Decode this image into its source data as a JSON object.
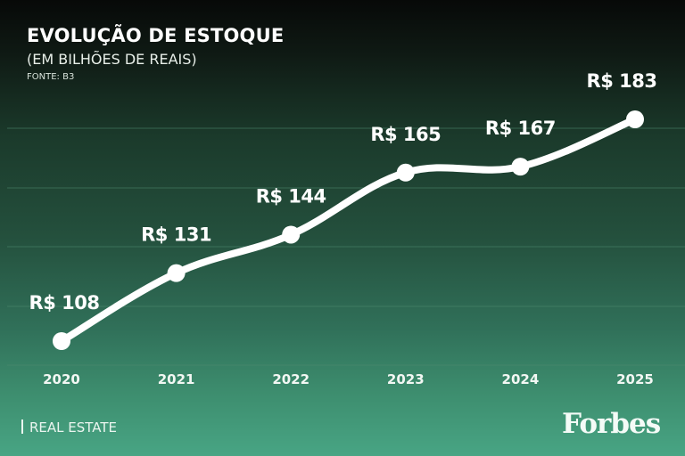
{
  "header": {
    "title": "EVOLUÇÃO DE ESTOQUE",
    "subtitle": "(EM BILHÕES DE REAIS)",
    "source": "FONTE: B3"
  },
  "footer": {
    "section": "REAL ESTATE",
    "logo": "Forbes"
  },
  "colors": {
    "background_top": "#070908",
    "background_bottom": "#48a584",
    "line": "#ffffff",
    "gridline": "#4f8a70"
  },
  "chart_data": {
    "type": "line",
    "title": "EVOLUÇÃO DE ESTOQUE",
    "subtitle": "(EM BILHÕES DE REAIS)",
    "source": "FONTE: B3",
    "xlabel": "",
    "ylabel": "R$ bilhões",
    "categories": [
      "2020",
      "2021",
      "2022",
      "2023",
      "2024",
      "2025"
    ],
    "values": [
      108,
      131,
      144,
      165,
      167,
      183
    ],
    "data_labels": [
      "R$ 108",
      "R$ 131",
      "R$ 144",
      "R$ 165",
      "R$ 167",
      "R$ 183"
    ],
    "grid": true,
    "legend": "none"
  }
}
